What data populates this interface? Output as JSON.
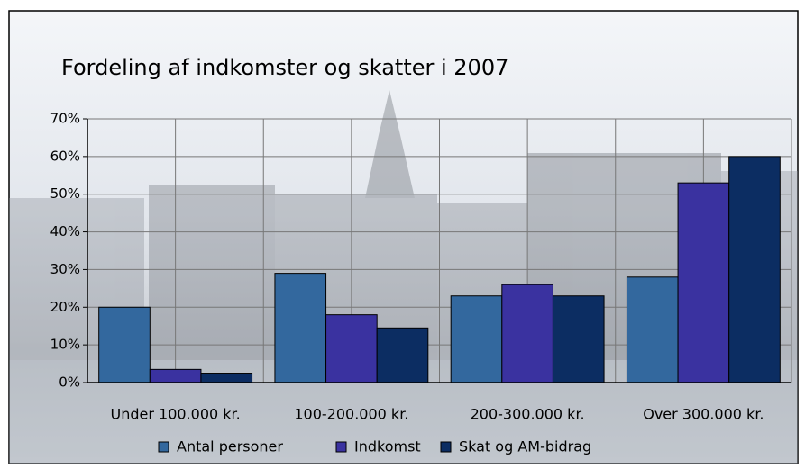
{
  "chart_data": {
    "type": "bar",
    "title": "Fordeling af indkomster og skatter i 2007",
    "categories": [
      "Under 100.000 kr.",
      "100-200.000 kr.",
      "200-300.000 kr.",
      "Over 300.000 kr."
    ],
    "series": [
      {
        "name": "Antal personer",
        "color": "#33689e",
        "values": [
          20,
          29,
          23,
          28
        ]
      },
      {
        "name": "Indkomst",
        "color": "#3a32a0",
        "values": [
          3.5,
          18,
          26,
          53
        ]
      },
      {
        "name": "Skat og AM-bidrag",
        "color": "#0c2d62",
        "values": [
          2.5,
          14.5,
          23,
          60
        ]
      }
    ],
    "ylim": [
      0,
      70
    ],
    "yticks": [
      {
        "value": 0,
        "label": "0%"
      },
      {
        "value": 10,
        "label": "10%"
      },
      {
        "value": 20,
        "label": "20%"
      },
      {
        "value": 30,
        "label": "30%"
      },
      {
        "value": 40,
        "label": "40%"
      },
      {
        "value": 50,
        "label": "50%"
      },
      {
        "value": 60,
        "label": "60%"
      },
      {
        "value": 70,
        "label": "70%"
      }
    ],
    "grid": true
  }
}
